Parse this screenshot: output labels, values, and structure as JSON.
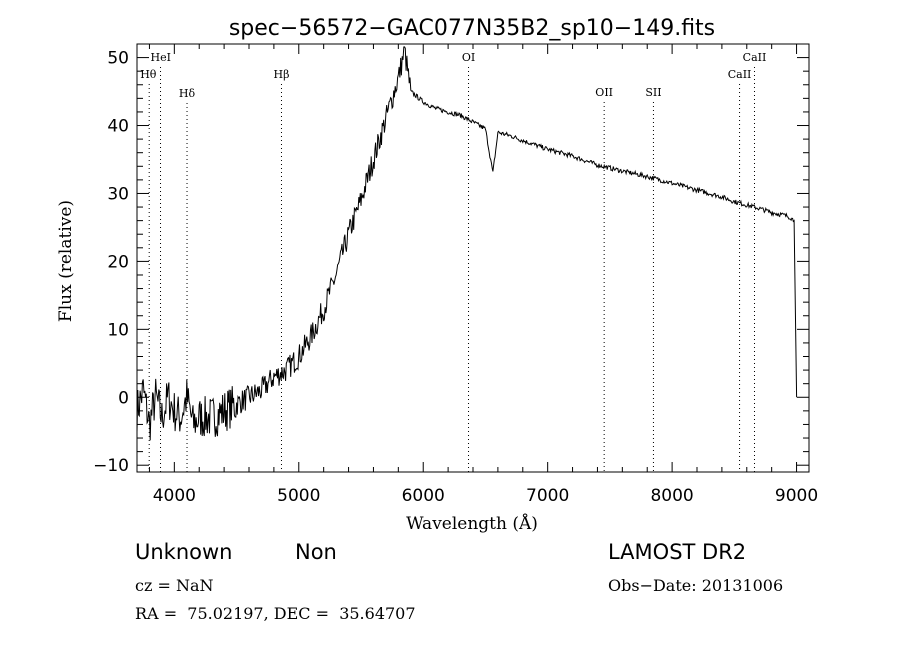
{
  "chart_data": {
    "type": "line",
    "title": "spec−56572−GAC077N35B2_sp10−149.fits",
    "xlabel": "Wavelength (Å)",
    "ylabel": "Flux (relative)",
    "xlim": [
      3700,
      9100
    ],
    "ylim": [
      -11,
      52
    ],
    "x_ticks": [
      4000,
      5000,
      6000,
      7000,
      8000,
      9000
    ],
    "y_ticks": [
      -10,
      0,
      10,
      20,
      30,
      40,
      50
    ],
    "y_tick_labels": [
      "−10",
      "0",
      "10",
      "20",
      "30",
      "40",
      "50"
    ],
    "grid": false,
    "series": [
      {
        "x": [
          3700,
          3750,
          3800,
          3850,
          3900,
          3950,
          4000,
          4050,
          4100,
          4150,
          4200,
          4300,
          4400,
          4500,
          4600,
          4700,
          4800,
          4900,
          5000,
          5100,
          5200,
          5300,
          5400,
          5500,
          5600,
          5700,
          5750,
          5800,
          5850,
          5900,
          6000,
          6100,
          6200,
          6300,
          6400,
          6500,
          6560,
          6600,
          6700,
          6800,
          7000,
          7200,
          7400,
          7600,
          7800,
          8000,
          8200,
          8400,
          8500,
          8600,
          8700,
          8800,
          8900,
          8950,
          8980,
          9000
        ],
        "y": [
          -2,
          1,
          -4,
          0,
          -3,
          0,
          -2,
          -3,
          0,
          -4,
          -3,
          -3,
          -2,
          -1,
          0,
          1,
          3,
          4,
          6,
          9,
          13,
          18,
          24,
          29,
          35,
          41,
          44,
          47,
          51,
          45,
          43.5,
          42.5,
          42,
          41.5,
          40.5,
          39.5,
          33,
          39,
          38.5,
          37.8,
          36.5,
          35.5,
          34.2,
          33.3,
          32.5,
          31.5,
          30.5,
          29.5,
          28.8,
          28.3,
          27.8,
          27.2,
          26.8,
          26.5,
          26,
          0
        ]
      }
    ],
    "line_markers": [
      {
        "label": "HeI",
        "x": 3889
      },
      {
        "label": "Hθ",
        "x": 3798
      },
      {
        "label": "Hδ",
        "x": 4102
      },
      {
        "label": "Hβ",
        "x": 4861
      },
      {
        "label": "OI",
        "x": 6364
      },
      {
        "label": "OII",
        "x": 7454
      },
      {
        "label": "SII",
        "x": 7850
      },
      {
        "label": "CaII",
        "x": 8542
      },
      {
        "label": "CaII",
        "x": 8662
      }
    ]
  },
  "info": {
    "class": "Unknown",
    "subclass": "Non",
    "survey": "LAMOST DR2",
    "cz": "cz = NaN",
    "obs_date": "Obs−Date: 20131006",
    "coords": "RA =  75.02197, DEC =  35.64707"
  }
}
